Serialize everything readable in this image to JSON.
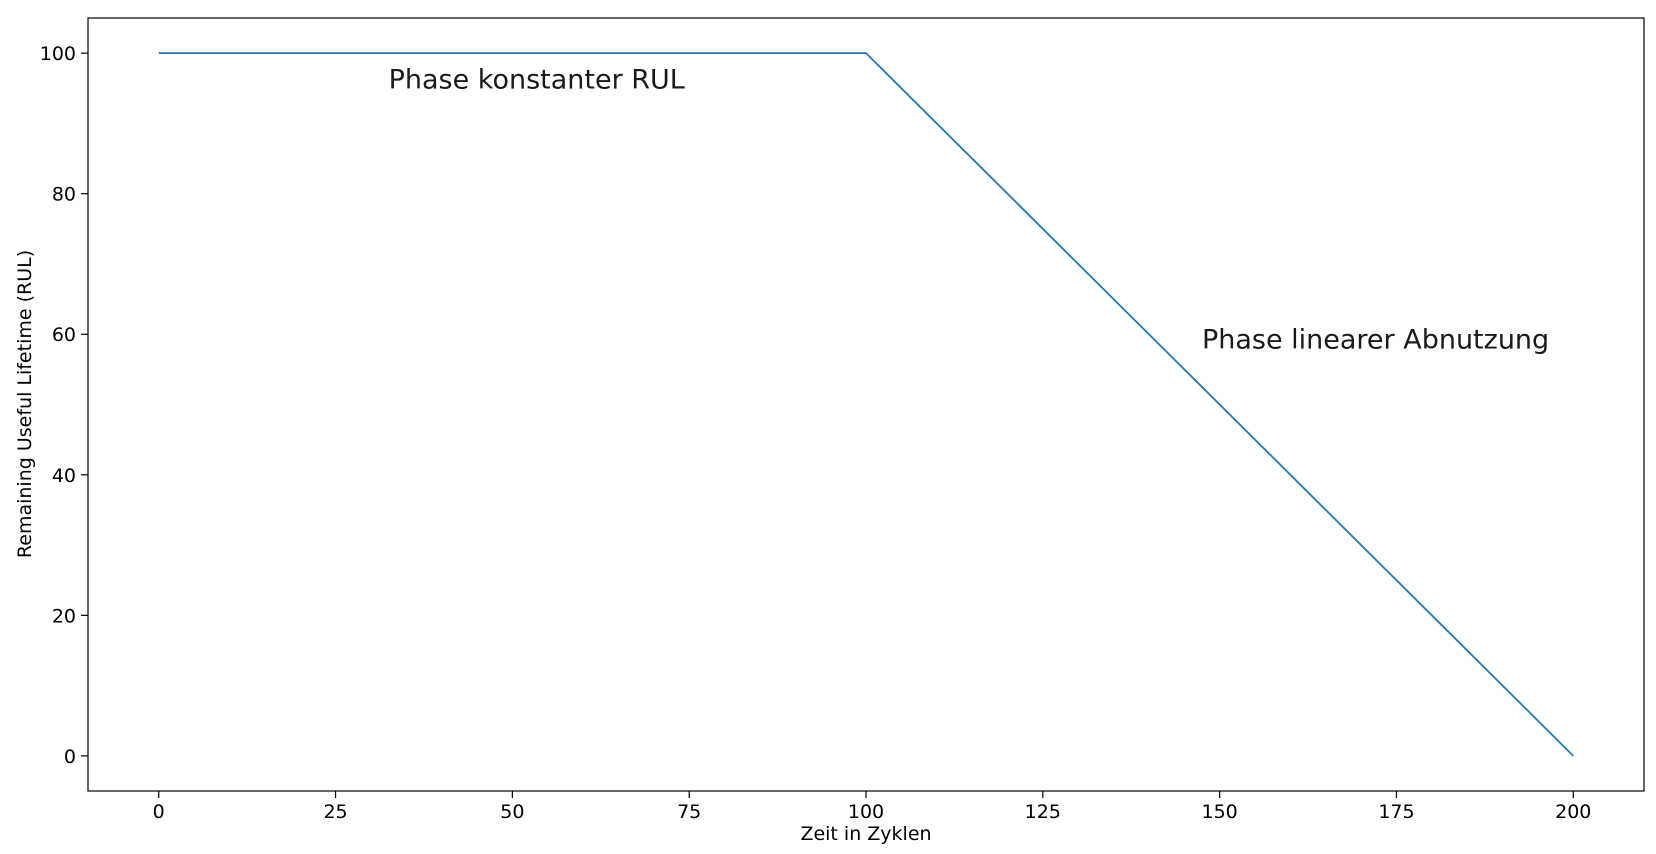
{
  "chart_data": {
    "type": "line",
    "title": "",
    "xlabel": "Zeit in Zyklen",
    "ylabel": "Remaining Useful Lifetime (RUL)",
    "xlim": [
      -10,
      210
    ],
    "ylim": [
      -5,
      105
    ],
    "xticks": [
      0,
      25,
      50,
      75,
      100,
      125,
      150,
      175,
      200
    ],
    "yticks": [
      0,
      20,
      40,
      60,
      80,
      100
    ],
    "grid": false,
    "series": [
      {
        "color": "#1f77b4",
        "x": [
          0,
          100,
          200
        ],
        "y": [
          100,
          100,
          0
        ]
      }
    ],
    "annotations": [
      {
        "text": "Phase konstanter RUL",
        "x": 32.5,
        "y": 95
      },
      {
        "text": "Phase linearer Abnutzung",
        "x": 147.5,
        "y": 58
      }
    ]
  }
}
